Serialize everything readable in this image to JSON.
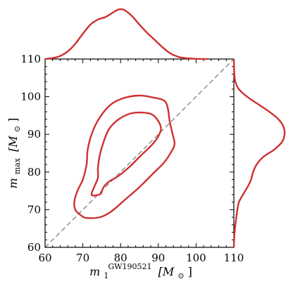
{
  "chart_data": {
    "type": "contour",
    "x_axis": {
      "range": [
        60,
        110
      ],
      "ticks": [
        60,
        70,
        80,
        90,
        100,
        110
      ],
      "label_main": "m",
      "label_sub": "1",
      "label_sup": "GW190521",
      "label_units": "[M",
      "label_units_sub": "⊙",
      "label_units_close": "]"
    },
    "y_axis": {
      "range": [
        60,
        110
      ],
      "ticks": [
        60,
        70,
        80,
        90,
        100,
        110
      ],
      "label_main": "m",
      "label_sub": "max",
      "label_units": "[M",
      "label_units_sub": "⊙",
      "label_units_close": "]"
    },
    "diagonal": {
      "from": [
        60,
        60
      ],
      "to": [
        110,
        110
      ],
      "style": "dashed",
      "color": "#888888"
    },
    "contours": [
      {
        "level": "outer",
        "color": "#d03030",
        "points": [
          [
            71.0,
            67.8
          ],
          [
            69.5,
            68.5
          ],
          [
            68.0,
            70.0
          ],
          [
            67.8,
            72.5
          ],
          [
            68.8,
            75.5
          ],
          [
            70.0,
            78.0
          ],
          [
            71.0,
            82.0
          ],
          [
            71.3,
            86.0
          ],
          [
            72.5,
            90.5
          ],
          [
            74.5,
            94.5
          ],
          [
            77.5,
            98.0
          ],
          [
            81.0,
            99.7
          ],
          [
            85.0,
            100.3
          ],
          [
            88.5,
            99.8
          ],
          [
            91.5,
            99.0
          ],
          [
            92.5,
            97.0
          ],
          [
            93.0,
            93.5
          ],
          [
            93.8,
            90.0
          ],
          [
            94.3,
            87.5
          ],
          [
            93.5,
            85.5
          ],
          [
            91.5,
            82.5
          ],
          [
            88.5,
            79.5
          ],
          [
            85.0,
            76.0
          ],
          [
            81.0,
            72.5
          ],
          [
            77.5,
            69.5
          ],
          [
            74.5,
            68.0
          ],
          [
            71.0,
            67.8
          ]
        ]
      },
      {
        "level": "inner",
        "color": "#d03030",
        "points": [
          [
            72.3,
            74.0
          ],
          [
            73.0,
            76.0
          ],
          [
            74.0,
            78.5
          ],
          [
            74.0,
            81.0
          ],
          [
            74.5,
            84.5
          ],
          [
            75.5,
            88.0
          ],
          [
            77.0,
            91.5
          ],
          [
            79.5,
            94.0
          ],
          [
            82.5,
            95.5
          ],
          [
            85.5,
            95.8
          ],
          [
            88.3,
            95.3
          ],
          [
            90.0,
            93.5
          ],
          [
            90.7,
            91.5
          ],
          [
            90.0,
            89.5
          ],
          [
            88.3,
            87.2
          ],
          [
            85.5,
            84.5
          ],
          [
            82.5,
            81.5
          ],
          [
            79.5,
            79.0
          ],
          [
            77.0,
            77.5
          ],
          [
            75.5,
            76.0
          ],
          [
            74.8,
            74.3
          ],
          [
            73.5,
            73.8
          ],
          [
            72.3,
            74.0
          ]
        ]
      }
    ],
    "top_marginal": {
      "color": "#d03030",
      "points": [
        [
          60,
          0.0
        ],
        [
          62,
          0.02
        ],
        [
          64,
          0.06
        ],
        [
          66,
          0.15
        ],
        [
          68,
          0.3
        ],
        [
          70,
          0.5
        ],
        [
          72,
          0.68
        ],
        [
          74,
          0.78
        ],
        [
          76,
          0.83
        ],
        [
          78,
          0.92
        ],
        [
          79.5,
          0.98
        ],
        [
          81,
          0.97
        ],
        [
          83,
          0.85
        ],
        [
          85,
          0.68
        ],
        [
          87,
          0.52
        ],
        [
          89,
          0.38
        ],
        [
          91,
          0.24
        ],
        [
          93,
          0.12
        ],
        [
          95,
          0.05
        ],
        [
          97,
          0.02
        ],
        [
          100,
          0.005
        ],
        [
          103,
          0.0
        ]
      ]
    },
    "right_marginal": {
      "color": "#d03030",
      "points": [
        [
          110,
          0.0
        ],
        [
          106,
          0.01
        ],
        [
          104,
          0.03
        ],
        [
          102,
          0.1
        ],
        [
          100,
          0.26
        ],
        [
          98,
          0.48
        ],
        [
          96,
          0.7
        ],
        [
          94,
          0.88
        ],
        [
          92,
          0.98
        ],
        [
          90,
          1.0
        ],
        [
          88,
          0.95
        ],
        [
          86,
          0.8
        ],
        [
          84,
          0.58
        ],
        [
          82,
          0.45
        ],
        [
          80,
          0.38
        ],
        [
          78,
          0.34
        ],
        [
          76,
          0.27
        ],
        [
          74,
          0.18
        ],
        [
          72,
          0.1
        ],
        [
          70,
          0.07
        ],
        [
          68,
          0.05
        ],
        [
          66,
          0.03
        ],
        [
          64,
          0.015
        ],
        [
          62,
          0.005
        ],
        [
          60,
          0.0
        ]
      ]
    }
  }
}
